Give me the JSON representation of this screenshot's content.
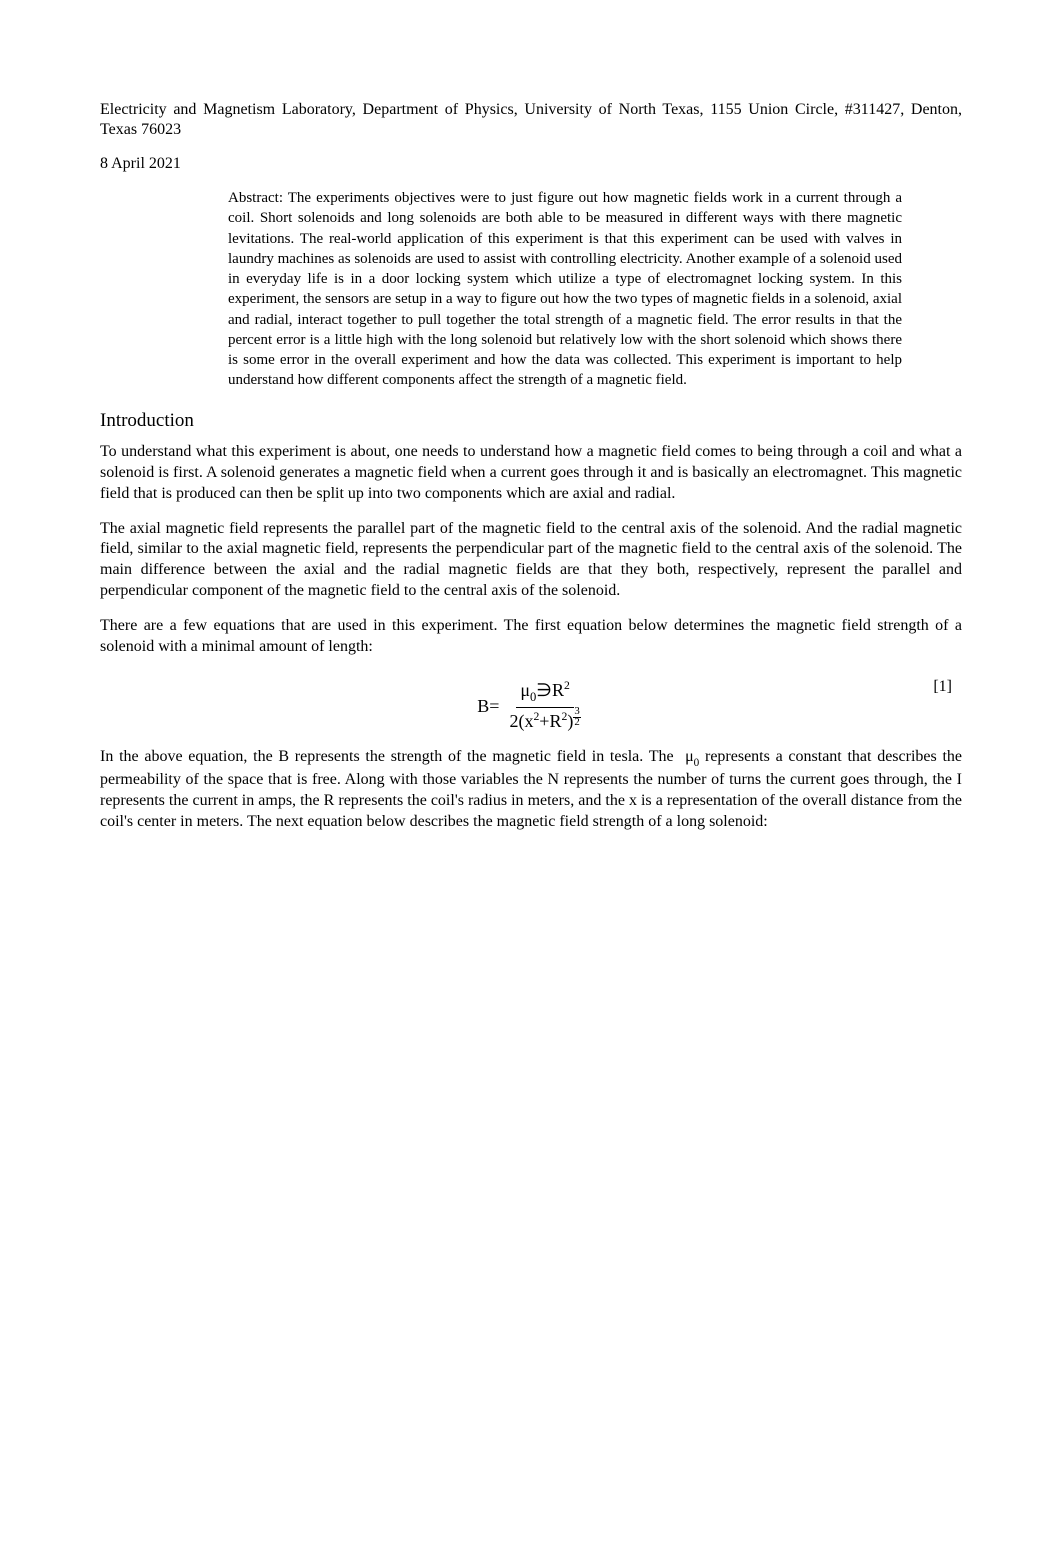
{
  "affiliation": "Electricity and Magnetism Laboratory, Department of Physics, University of North Texas, 1155 Union Circle, #311427, Denton, Texas 76023",
  "date": "8 April 2021",
  "abstract": "Abstract: The experiments objectives were to just figure out how magnetic fields work in a current through a coil. Short solenoids and long solenoids are both able to be measured in different ways with there magnetic levitations. The real-world application of this experiment is that this experiment can be used with valves in laundry machines as solenoids are used to assist with controlling electricity. Another example of a solenoid used in everyday life is in a door locking system which utilize a type of electromagnet locking system. In this experiment, the sensors are setup in a way to figure out how the two types of magnetic fields in a solenoid, axial and radial, interact together to pull together the total strength of a magnetic field. The error results in that the percent error is a little high with the long solenoid but relatively low with the short solenoid which shows there is some error in the overall experiment and how the data was collected. This experiment is important to help understand how different components affect the strength of a magnetic field.",
  "section_heading": "Introduction",
  "para1": "To understand what this experiment is about, one needs to understand how a magnetic field comes to being through a coil and what a solenoid is first. A solenoid generates a magnetic field when a current goes through it and is basically an electromagnet. This magnetic field that is produced can then be split up into two components which are axial and radial.",
  "para2": "The axial magnetic field represents the parallel part of the magnetic field to the central axis of the solenoid. And the radial magnetic field, similar to the axial magnetic field, represents the perpendicular part of the magnetic field to the central axis of the solenoid. The main difference between the axial and the radial magnetic fields are that they both, respectively, represent the parallel and perpendicular component of the magnetic field to the central axis of the solenoid.",
  "para3": "There are a few equations that are used in this experiment. The first equation below determines the magnetic field strength of a solenoid with a minimal amount of length:",
  "equation1": {
    "lhs": "B=",
    "num_mu": "μ",
    "num_mu_sub": "0",
    "num_sym": "∋",
    "num_R": "R",
    "num_R_sup": "2",
    "den_2": "2(",
    "den_x": "x",
    "den_x_sup": "2",
    "den_plus": "+",
    "den_R": "R",
    "den_R_sup": "2",
    "den_close": ")",
    "den_exp_n": "3",
    "den_exp_d": "2",
    "label": "[1]"
  },
  "para4_a": "In the above equation, the B represents the strength of the magnetic field in tesla. The ",
  "para4_mu": "μ",
  "para4_mu_sub": "0",
  "para4_b": " represents a constant that describes the permeability of the space that is free. Along with those variables the N represents the number of turns the current goes through, the I represents the current in amps, the R represents the coil's radius in meters, and the x is a representation of the overall distance from the coil's center in meters. The next equation below describes the magnetic field strength of a long solenoid:"
}
